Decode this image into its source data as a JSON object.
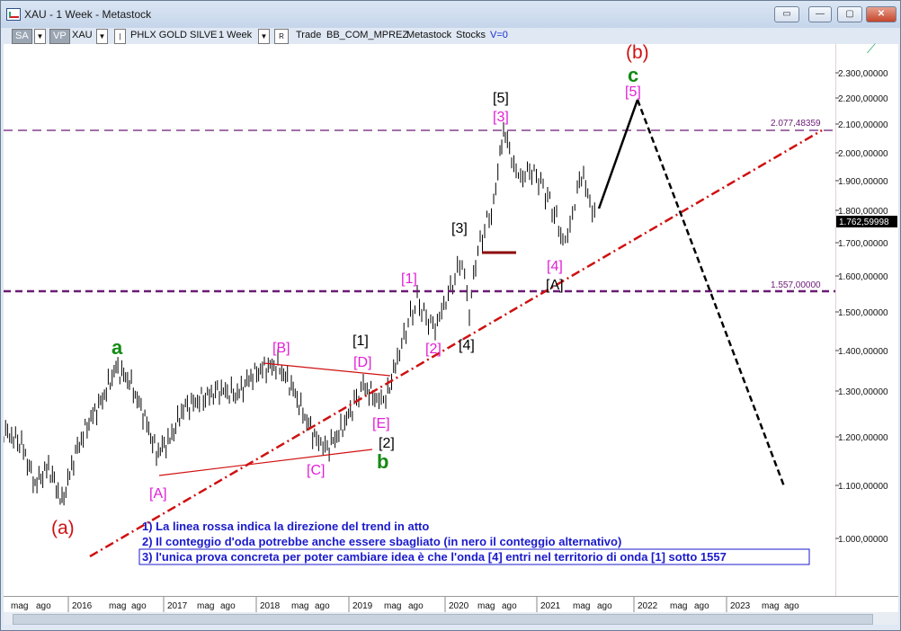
{
  "window": {
    "title": "XAU - 1 Week - Metastock",
    "buttons": [
      "▭",
      "—",
      "▢",
      "✕"
    ]
  },
  "toolbar": {
    "sa": "SA",
    "vp": "VP",
    "symbol": "XAU",
    "name": "PHLX GOLD SILVE",
    "period": "1 Week",
    "r": "R",
    "trade": "Trade",
    "template": "BB_COM_MPREZ",
    "app": "Metastock",
    "stocks": "Stocks",
    "v": "V=0"
  },
  "price_axis": {
    "ticks": [
      "2.300,00000",
      "2.200,00000",
      "2.100,00000",
      "2.000,00000",
      "1.900,00000",
      "1.800,00000",
      "1.700,00000",
      "1.600,00000",
      "1.500,00000",
      "1.400,00000",
      "1.300,00000",
      "1.200,00000",
      "1.100,00000",
      "1.000,00000"
    ],
    "last_price": "1.762,59998",
    "level_high": "2.077,48359",
    "level_low": "1.557,00000"
  },
  "time_axis": [
    "mag",
    "ago",
    "2016",
    "mag",
    "ago",
    "2017",
    "mag",
    "ago",
    "2018",
    "mag",
    "ago",
    "2019",
    "mag",
    "ago",
    "2020",
    "mag",
    "ago",
    "2021",
    "mag",
    "ago",
    "2022",
    "mag",
    "ago",
    "2023",
    "mag",
    "ago"
  ],
  "wave_labels": {
    "b_red": "(b)",
    "c_green": "c",
    "five_mag": "[5]",
    "five_black": "[5]",
    "three_mag": "[3]",
    "three_black": "[3]",
    "four_mag": "[4]",
    "A_black": "[A]",
    "one_mag": "[1]",
    "two_mag": "[2]",
    "four_black": "[4]",
    "one_black": "[1]",
    "D_mag": "[D]",
    "B_mag": "[B]",
    "a_green": "a",
    "E_mag": "[E]",
    "two_black": "[2]",
    "b_green": "b",
    "C_mag": "[C]",
    "A_mag": "[A]",
    "a_red": "(a)"
  },
  "notes": [
    "1) La linea rossa indica la direzione del trend in atto",
    "2) Il conteggio d'oda potrebbe anche essere sbagliato (in nero il conteggio alternativo)",
    "3) l'unica prova concreta per poter cambiare idea è che l'onda [4] entri nel territorio di onda [1] sotto 1557"
  ],
  "colors": {
    "magenta": "#e21fd6",
    "red": "#d01010",
    "green": "#138a13",
    "purple": "#6a1b75",
    "note_blue": "#1a1acc"
  }
}
